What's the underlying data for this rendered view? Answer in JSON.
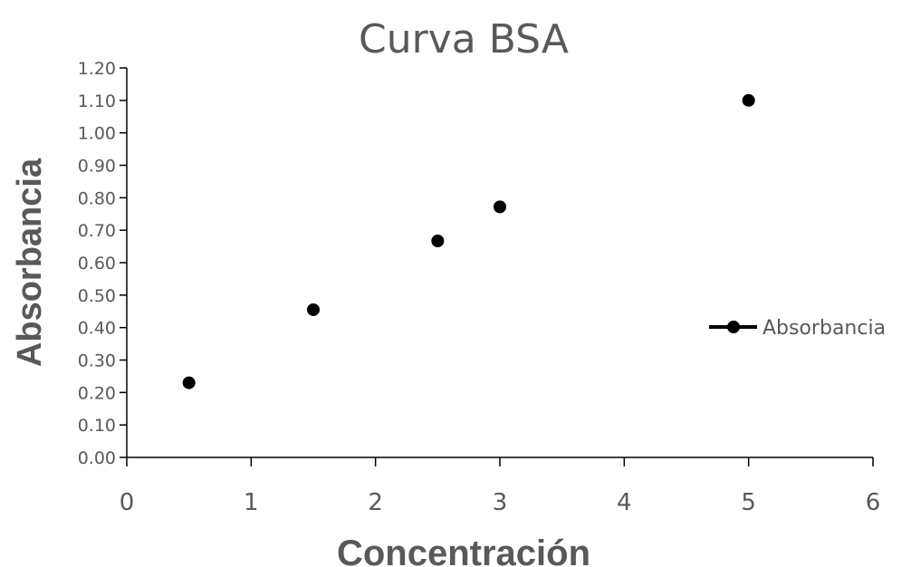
{
  "chart_data": {
    "type": "scatter",
    "title": "Curva BSA",
    "xlabel": "Concentración",
    "ylabel": "Absorbancia",
    "xlim": [
      0,
      6
    ],
    "ylim": [
      0,
      1.2
    ],
    "x_ticks": [
      "0",
      "1",
      "2",
      "3",
      "4",
      "5",
      "6"
    ],
    "y_ticks": [
      "0.00",
      "0.10",
      "0.20",
      "0.30",
      "0.40",
      "0.50",
      "0.60",
      "0.70",
      "0.80",
      "0.90",
      "1.00",
      "1.10",
      "1.20"
    ],
    "grid": false,
    "legend_position": "right",
    "series": [
      {
        "name": "Absorbancia",
        "color": "#000000",
        "x": [
          0.5,
          1.5,
          2.5,
          3.0,
          5.0
        ],
        "y": [
          0.23,
          0.455,
          0.667,
          0.772,
          1.1
        ]
      }
    ]
  }
}
